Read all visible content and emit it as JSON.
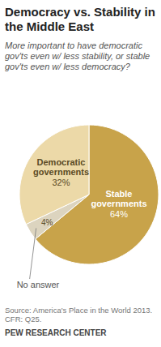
{
  "chart_data": {
    "type": "pie",
    "title": "Democracy vs. Stability in the Middle East",
    "subtitle": "More important to have democratic gov'ts even w/ less stability, or stable gov'ts even w/ less democracy?",
    "categories": [
      "Stable governments",
      "No answer",
      "Democratic governments"
    ],
    "values": [
      64,
      4,
      32
    ],
    "value_labels": [
      "64%",
      "4%",
      "32%"
    ],
    "colors": [
      "#c8a34a",
      "#dcd4bf",
      "#ecd9a8"
    ],
    "data_labels": true,
    "annotations": [
      "Source: America's Place in the World 2013. CFR: Q25.",
      "PEW RESEARCH CENTER"
    ]
  }
}
